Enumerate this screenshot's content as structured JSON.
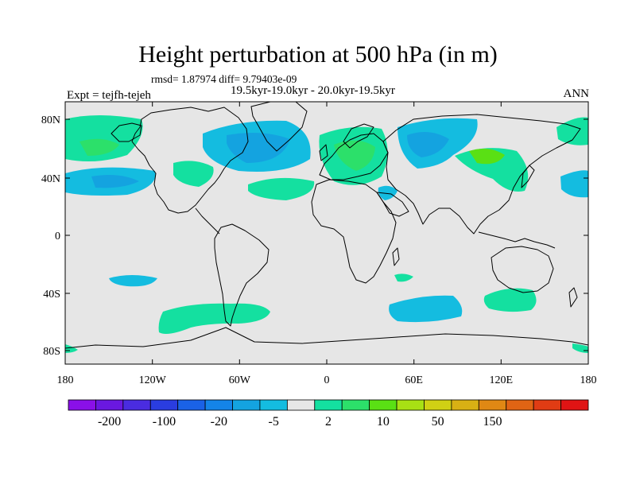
{
  "title": "Height perturbation at 500 hPa (in m)",
  "stats": "rmsd= 1.87974  diff= 9.79403e-09",
  "period": "19.5kyr-19.0kyr - 20.0kyr-19.5kyr",
  "experiment": "Expt = tejfh-tejeh",
  "season": "ANN",
  "lat_labels": [
    "80N",
    "40N",
    "0",
    "40S",
    "80S"
  ],
  "lon_labels": [
    "180",
    "120W",
    "60W",
    "0",
    "60E",
    "120E",
    "180"
  ],
  "colorbar_labels": [
    "-200",
    "-100",
    "-20",
    "-5",
    "2",
    "10",
    "50",
    "150"
  ],
  "colors": {
    "ocean_background": "#e6e6e6",
    "coastline": "#000000",
    "bins": [
      "#8a10e8",
      "#6a18e0",
      "#4a2ce0",
      "#2a3de0",
      "#1a62e6",
      "#1484e8",
      "#14a3e0",
      "#14bce0",
      "#e6e6e6",
      "#14e0a0",
      "#2ce06a",
      "#5ae014",
      "#a8e014",
      "#d0d014",
      "#d8b014",
      "#e08814",
      "#e06414",
      "#e03c14",
      "#e01414"
    ]
  }
}
